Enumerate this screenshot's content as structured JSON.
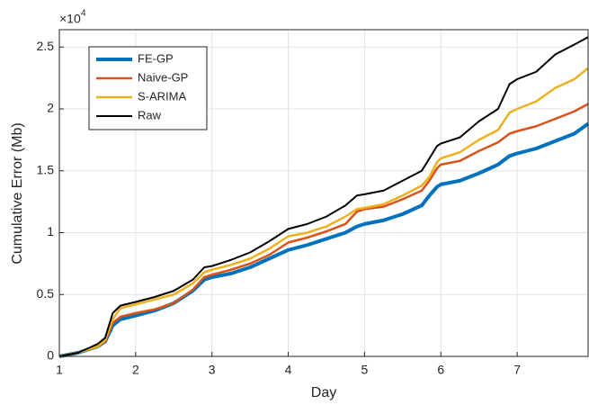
{
  "chart_data": {
    "type": "line",
    "x_label": "Day",
    "y_label": "Cumulative Error (Mb)",
    "y_multiplier": {
      "base": "×10",
      "power": "4"
    },
    "x": [
      1,
      1.25,
      1.5,
      1.6,
      1.7,
      1.8,
      2,
      2.25,
      2.5,
      2.75,
      2.9,
      3,
      3.25,
      3.5,
      3.75,
      4,
      4.25,
      4.5,
      4.75,
      4.9,
      5,
      5.25,
      5.5,
      5.75,
      5.85,
      5.95,
      6,
      6.25,
      6.5,
      6.75,
      6.9,
      7,
      7.25,
      7.5,
      7.75,
      7.93
    ],
    "series": [
      {
        "name": "FE-GP",
        "color": "#0072BD",
        "line_width": 4,
        "values": [
          0,
          0.03,
          0.08,
          0.12,
          0.25,
          0.3,
          0.33,
          0.37,
          0.43,
          0.53,
          0.62,
          0.64,
          0.67,
          0.72,
          0.79,
          0.86,
          0.9,
          0.95,
          1.0,
          1.05,
          1.07,
          1.1,
          1.15,
          1.22,
          1.3,
          1.37,
          1.39,
          1.42,
          1.48,
          1.55,
          1.62,
          1.64,
          1.68,
          1.74,
          1.8,
          1.88
        ]
      },
      {
        "name": "Naive-GP",
        "color": "#D95319",
        "line_width": 2.5,
        "values": [
          0,
          0.03,
          0.08,
          0.12,
          0.27,
          0.32,
          0.35,
          0.38,
          0.43,
          0.54,
          0.64,
          0.66,
          0.7,
          0.75,
          0.82,
          0.92,
          0.96,
          1.01,
          1.07,
          1.17,
          1.19,
          1.21,
          1.27,
          1.34,
          1.42,
          1.52,
          1.55,
          1.58,
          1.66,
          1.73,
          1.8,
          1.82,
          1.86,
          1.92,
          1.98,
          2.04
        ]
      },
      {
        "name": "S-ARIMA",
        "color": "#EDB120",
        "line_width": 2.5,
        "values": [
          0,
          0.03,
          0.08,
          0.13,
          0.3,
          0.39,
          0.42,
          0.46,
          0.5,
          0.59,
          0.68,
          0.7,
          0.74,
          0.79,
          0.87,
          0.97,
          1.0,
          1.05,
          1.13,
          1.19,
          1.2,
          1.23,
          1.3,
          1.38,
          1.45,
          1.57,
          1.6,
          1.65,
          1.75,
          1.83,
          1.97,
          2.0,
          2.06,
          2.17,
          2.24,
          2.33
        ]
      },
      {
        "name": "Raw",
        "color": "#000000",
        "line_width": 2,
        "values": [
          0,
          0.03,
          0.1,
          0.15,
          0.35,
          0.41,
          0.44,
          0.48,
          0.53,
          0.62,
          0.72,
          0.73,
          0.78,
          0.84,
          0.93,
          1.03,
          1.07,
          1.13,
          1.22,
          1.3,
          1.31,
          1.34,
          1.42,
          1.5,
          1.6,
          1.7,
          1.72,
          1.77,
          1.9,
          2.0,
          2.2,
          2.24,
          2.3,
          2.44,
          2.52,
          2.58
        ]
      }
    ],
    "xlim": [
      1,
      7.93
    ],
    "xticks": [
      1,
      2,
      3,
      4,
      5,
      6,
      7
    ],
    "ylim": [
      0,
      2.64
    ],
    "yticks": [
      0,
      0.5,
      1,
      1.5,
      2,
      2.5
    ],
    "grid": true,
    "legend": "upper-left"
  }
}
